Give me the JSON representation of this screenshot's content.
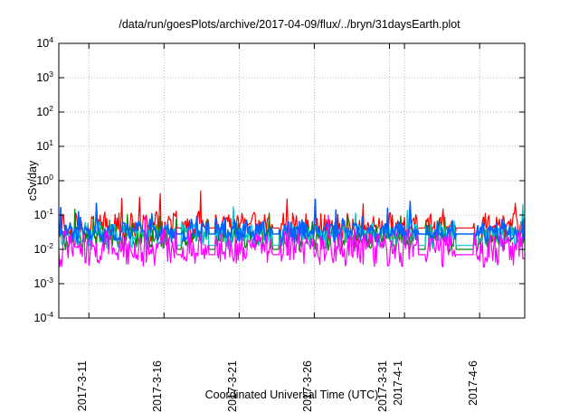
{
  "chart_data": {
    "type": "line",
    "title": "/data/run/goesPlots/archive/2017-04-09/flux/../bryn/31daysEarth.plot",
    "xlabel": "Coordinated Universal Time (UTC)",
    "ylabel": "cSv/day",
    "yscale": "log",
    "ylim": [
      0.0001,
      10000
    ],
    "xlim": [
      "2017-03-09",
      "2017-04-09"
    ],
    "grid": true,
    "y_ticks": [
      {
        "base": "10",
        "exp": "4",
        "value": 10000
      },
      {
        "base": "10",
        "exp": "3",
        "value": 1000
      },
      {
        "base": "10",
        "exp": "2",
        "value": 100
      },
      {
        "base": "10",
        "exp": "1",
        "value": 10
      },
      {
        "base": "10",
        "exp": "0",
        "value": 1
      },
      {
        "base": "10",
        "exp": "-1",
        "value": 0.1
      },
      {
        "base": "10",
        "exp": "-2",
        "value": 0.01
      },
      {
        "base": "10",
        "exp": "-3",
        "value": 0.001
      },
      {
        "base": "10",
        "exp": "-4",
        "value": 0.0001
      }
    ],
    "x_ticks": [
      {
        "label": "2017-3-11",
        "date": "2017-03-11"
      },
      {
        "label": "2017-3-16",
        "date": "2017-03-16"
      },
      {
        "label": "2017-3-21",
        "date": "2017-03-21"
      },
      {
        "label": "2017-3-26",
        "date": "2017-03-26"
      },
      {
        "label": "2017-3-31",
        "date": "2017-03-31"
      },
      {
        "label": "2017-4-1",
        "date": "2017-04-01"
      },
      {
        "label": "2017-4-6",
        "date": "2017-04-06"
      }
    ],
    "series": [
      {
        "color": "#ff0000",
        "base": 0.045,
        "variance": 0.35,
        "gap_level": 0.042
      },
      {
        "color": "#008800",
        "base": 0.022,
        "variance": 0.3,
        "gap_level": 0.01
      },
      {
        "color": "#00c8c8",
        "base": 0.026,
        "variance": 0.3,
        "gap_level": 0.013
      },
      {
        "color": "#0060ff",
        "base": 0.034,
        "variance": 0.25,
        "gap_level": 0.028
      },
      {
        "color": "#ff00ff",
        "base": 0.011,
        "variance": 0.45,
        "gap_level": 0.007
      }
    ],
    "gaps": [
      [
        "2017-03-16T20:00",
        "2017-03-17T04:00"
      ],
      [
        "2017-03-19T00:00",
        "2017-03-19T10:00"
      ],
      [
        "2017-03-23T06:00",
        "2017-03-23T16:00"
      ],
      [
        "2017-04-01T22:00",
        "2017-04-02T09:00"
      ],
      [
        "2017-04-04T10:00",
        "2017-04-05T14:00"
      ]
    ]
  }
}
